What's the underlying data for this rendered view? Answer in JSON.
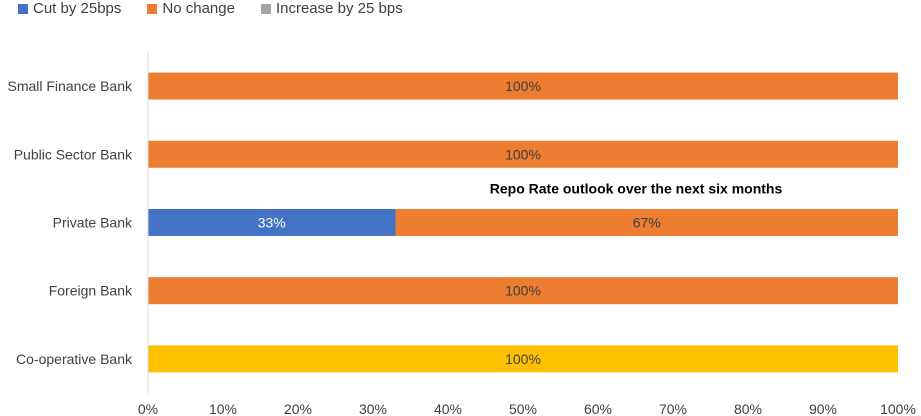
{
  "chart_data": {
    "type": "bar",
    "orientation": "horizontal",
    "stacked": "percent",
    "title": "Repo Rate outlook over the next six months",
    "categories": [
      "Small Finance Bank",
      "Public Sector Bank",
      "Private Bank",
      "Foreign Bank",
      "Co-operative Bank"
    ],
    "series": [
      {
        "name": "Cut by 25bps",
        "color": "#4472C4",
        "values": [
          0,
          0,
          33,
          0,
          0
        ],
        "labels": [
          "",
          "",
          "33%",
          "",
          ""
        ]
      },
      {
        "name": "No change",
        "color": "#ED7D31",
        "values": [
          100,
          100,
          67,
          100,
          100
        ],
        "labels": [
          "100%",
          "100%",
          "67%",
          "100%",
          "100%"
        ],
        "point_colors": [
          null,
          null,
          null,
          null,
          "#FFC000"
        ]
      },
      {
        "name": "Increase by 25 bps",
        "color": "#A5A5A5",
        "values": [
          0,
          0,
          0,
          0,
          0
        ],
        "labels": [
          "",
          "",
          "",
          "",
          ""
        ]
      }
    ],
    "xlim": [
      0,
      100
    ],
    "xticks": [
      "0%",
      "10%",
      "20%",
      "30%",
      "40%",
      "50%",
      "60%",
      "70%",
      "80%",
      "90%",
      "100%"
    ],
    "grid": false,
    "legend": "top-left"
  }
}
